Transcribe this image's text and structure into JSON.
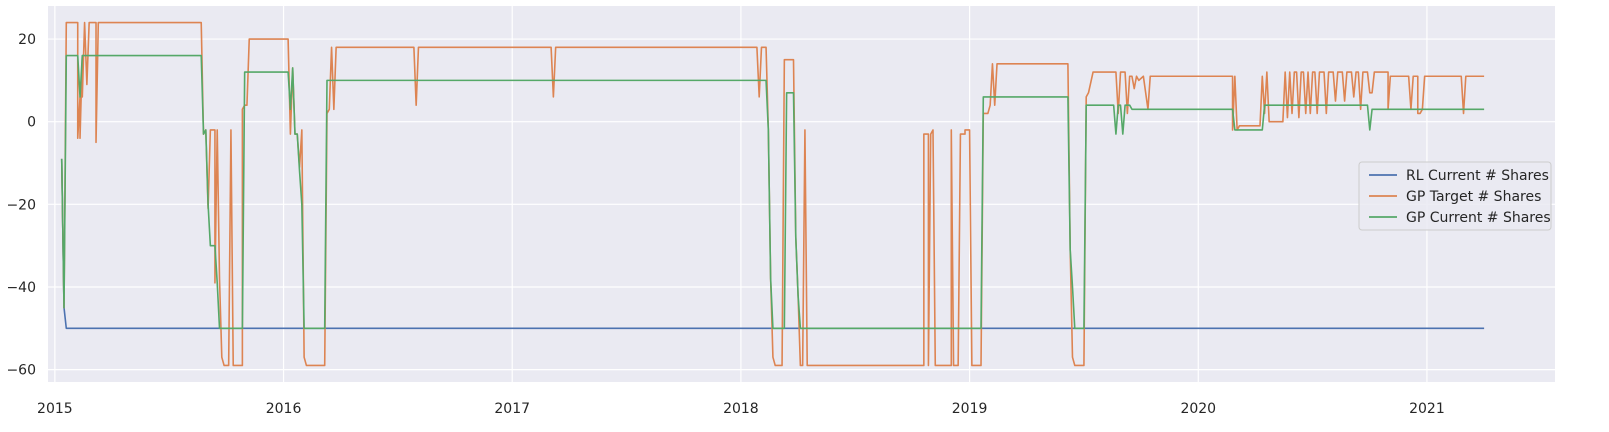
{
  "chart_data": {
    "type": "line",
    "title": "",
    "xlabel": "",
    "ylabel": "",
    "xlim": [
      2014.97,
      2021.56
    ],
    "ylim": [
      -63,
      28
    ],
    "x_ticks": [
      {
        "value": 2015,
        "label": "2015"
      },
      {
        "value": 2016,
        "label": "2016"
      },
      {
        "value": 2017,
        "label": "2017"
      },
      {
        "value": 2018,
        "label": "2018"
      },
      {
        "value": 2019,
        "label": "2019"
      },
      {
        "value": 2020,
        "label": "2020"
      },
      {
        "value": 2021,
        "label": "2021"
      }
    ],
    "y_ticks": [
      {
        "value": 20,
        "label": "20"
      },
      {
        "value": 0,
        "label": "0"
      },
      {
        "value": -20,
        "label": "−20"
      },
      {
        "value": -40,
        "label": "−40"
      },
      {
        "value": -60,
        "label": "−60"
      }
    ],
    "grid": true,
    "background": "#eaeaf2",
    "legend_position": "center-right",
    "series": [
      {
        "name": "RL Current # Shares",
        "color": "#4c72b0",
        "points": [
          [
            2015.03,
            -9
          ],
          [
            2015.04,
            -45
          ],
          [
            2015.05,
            -50
          ],
          [
            2021.25,
            -50
          ]
        ]
      },
      {
        "name": "GP Target # Shares",
        "color": "#dd8452",
        "points": [
          [
            2015.03,
            -9
          ],
          [
            2015.04,
            -45
          ],
          [
            2015.05,
            24
          ],
          [
            2015.1,
            24
          ],
          [
            2015.1,
            -4
          ],
          [
            2015.11,
            6
          ],
          [
            2015.11,
            -4
          ],
          [
            2015.12,
            16
          ],
          [
            2015.12,
            6
          ],
          [
            2015.13,
            24
          ],
          [
            2015.14,
            9
          ],
          [
            2015.15,
            24
          ],
          [
            2015.18,
            24
          ],
          [
            2015.18,
            -5
          ],
          [
            2015.19,
            24
          ],
          [
            2015.64,
            24
          ],
          [
            2015.65,
            -3
          ],
          [
            2015.66,
            -2
          ],
          [
            2015.67,
            -21
          ],
          [
            2015.68,
            -2
          ],
          [
            2015.7,
            -2
          ],
          [
            2015.7,
            -39
          ],
          [
            2015.71,
            -2
          ],
          [
            2015.72,
            -38
          ],
          [
            2015.73,
            -57
          ],
          [
            2015.74,
            -59
          ],
          [
            2015.76,
            -59
          ],
          [
            2015.77,
            -2
          ],
          [
            2015.78,
            -59
          ],
          [
            2015.82,
            -59
          ],
          [
            2015.82,
            3
          ],
          [
            2015.83,
            4
          ],
          [
            2015.84,
            4
          ],
          [
            2015.85,
            20
          ],
          [
            2016.02,
            20
          ],
          [
            2016.03,
            -3
          ],
          [
            2016.04,
            13
          ],
          [
            2016.05,
            -3
          ],
          [
            2016.06,
            -3
          ],
          [
            2016.07,
            -11
          ],
          [
            2016.08,
            -2
          ],
          [
            2016.09,
            -57
          ],
          [
            2016.1,
            -59
          ],
          [
            2016.18,
            -59
          ],
          [
            2016.19,
            2
          ],
          [
            2016.2,
            3
          ],
          [
            2016.21,
            18
          ],
          [
            2016.22,
            3
          ],
          [
            2016.23,
            18
          ],
          [
            2016.57,
            18
          ],
          [
            2016.58,
            4
          ],
          [
            2016.59,
            18
          ],
          [
            2017.17,
            18
          ],
          [
            2017.18,
            6
          ],
          [
            2017.19,
            18
          ],
          [
            2018.07,
            18
          ],
          [
            2018.08,
            6
          ],
          [
            2018.09,
            18
          ],
          [
            2018.11,
            18
          ],
          [
            2018.12,
            -2
          ],
          [
            2018.13,
            -38
          ],
          [
            2018.14,
            -57
          ],
          [
            2018.15,
            -59
          ],
          [
            2018.18,
            -59
          ],
          [
            2018.19,
            15
          ],
          [
            2018.23,
            15
          ],
          [
            2018.24,
            -28
          ],
          [
            2018.25,
            -42
          ],
          [
            2018.26,
            -59
          ],
          [
            2018.27,
            -59
          ],
          [
            2018.28,
            -2
          ],
          [
            2018.29,
            -59
          ],
          [
            2018.8,
            -59
          ],
          [
            2018.8,
            -3
          ],
          [
            2018.82,
            -3
          ],
          [
            2018.82,
            -59
          ],
          [
            2018.83,
            -3
          ],
          [
            2018.84,
            -2
          ],
          [
            2018.85,
            -59
          ],
          [
            2018.92,
            -59
          ],
          [
            2018.92,
            -2
          ],
          [
            2018.93,
            -59
          ],
          [
            2018.95,
            -59
          ],
          [
            2018.96,
            -3
          ],
          [
            2018.98,
            -3
          ],
          [
            2018.98,
            -2
          ],
          [
            2019.0,
            -2
          ],
          [
            2019.01,
            -59
          ],
          [
            2019.05,
            -59
          ],
          [
            2019.06,
            2
          ],
          [
            2019.07,
            2
          ],
          [
            2019.08,
            2
          ],
          [
            2019.09,
            4
          ],
          [
            2019.1,
            14
          ],
          [
            2019.11,
            4
          ],
          [
            2019.12,
            14
          ],
          [
            2019.43,
            14
          ],
          [
            2019.44,
            -31
          ],
          [
            2019.45,
            -57
          ],
          [
            2019.46,
            -59
          ],
          [
            2019.5,
            -59
          ],
          [
            2019.51,
            6
          ],
          [
            2019.52,
            7
          ],
          [
            2019.54,
            12
          ],
          [
            2019.64,
            12
          ],
          [
            2019.65,
            2
          ],
          [
            2019.66,
            12
          ],
          [
            2019.68,
            12
          ],
          [
            2019.69,
            2
          ],
          [
            2019.7,
            11
          ],
          [
            2019.71,
            11
          ],
          [
            2019.72,
            8
          ],
          [
            2019.73,
            11
          ],
          [
            2019.74,
            10
          ],
          [
            2019.76,
            11
          ],
          [
            2019.78,
            3
          ],
          [
            2019.79,
            11
          ],
          [
            2020.15,
            11
          ],
          [
            2020.15,
            -2
          ],
          [
            2020.16,
            11
          ],
          [
            2020.17,
            -2
          ],
          [
            2020.18,
            -1
          ],
          [
            2020.27,
            -1
          ],
          [
            2020.28,
            11
          ],
          [
            2020.29,
            2
          ],
          [
            2020.3,
            12
          ],
          [
            2020.31,
            0
          ],
          [
            2020.37,
            0
          ],
          [
            2020.38,
            12
          ],
          [
            2020.39,
            1
          ],
          [
            2020.4,
            12
          ],
          [
            2020.41,
            2
          ],
          [
            2020.42,
            12
          ],
          [
            2020.43,
            12
          ],
          [
            2020.44,
            1
          ],
          [
            2020.45,
            12
          ],
          [
            2020.46,
            12
          ],
          [
            2020.47,
            2
          ],
          [
            2020.48,
            12
          ],
          [
            2020.49,
            2
          ],
          [
            2020.5,
            12
          ],
          [
            2020.51,
            12
          ],
          [
            2020.52,
            2
          ],
          [
            2020.53,
            12
          ],
          [
            2020.55,
            12
          ],
          [
            2020.56,
            2
          ],
          [
            2020.57,
            12
          ],
          [
            2020.59,
            12
          ],
          [
            2020.6,
            5
          ],
          [
            2020.61,
            12
          ],
          [
            2020.63,
            12
          ],
          [
            2020.64,
            5
          ],
          [
            2020.65,
            12
          ],
          [
            2020.67,
            12
          ],
          [
            2020.68,
            6
          ],
          [
            2020.69,
            12
          ],
          [
            2020.7,
            12
          ],
          [
            2020.71,
            3
          ],
          [
            2020.72,
            12
          ],
          [
            2020.74,
            12
          ],
          [
            2020.75,
            7
          ],
          [
            2020.76,
            7
          ],
          [
            2020.77,
            12
          ],
          [
            2020.83,
            12
          ],
          [
            2020.83,
            3
          ],
          [
            2020.84,
            11
          ],
          [
            2020.92,
            11
          ],
          [
            2020.93,
            3
          ],
          [
            2020.94,
            11
          ],
          [
            2020.96,
            11
          ],
          [
            2020.96,
            2
          ],
          [
            2020.97,
            2
          ],
          [
            2020.98,
            3
          ],
          [
            2020.99,
            11
          ],
          [
            2021.15,
            11
          ],
          [
            2021.16,
            2
          ],
          [
            2021.17,
            11
          ],
          [
            2021.25,
            11
          ]
        ]
      },
      {
        "name": "GP Current # Shares",
        "color": "#55a868",
        "points": [
          [
            2015.03,
            -9
          ],
          [
            2015.04,
            -45
          ],
          [
            2015.05,
            16
          ],
          [
            2015.1,
            16
          ],
          [
            2015.11,
            6
          ],
          [
            2015.12,
            16
          ],
          [
            2015.64,
            16
          ],
          [
            2015.65,
            -3
          ],
          [
            2015.66,
            -2
          ],
          [
            2015.67,
            -20
          ],
          [
            2015.68,
            -30
          ],
          [
            2015.7,
            -30
          ],
          [
            2015.71,
            -39
          ],
          [
            2015.72,
            -50
          ],
          [
            2015.82,
            -50
          ],
          [
            2015.83,
            12
          ],
          [
            2016.02,
            12
          ],
          [
            2016.03,
            3
          ],
          [
            2016.04,
            13
          ],
          [
            2016.05,
            -3
          ],
          [
            2016.06,
            -3
          ],
          [
            2016.07,
            -12
          ],
          [
            2016.08,
            -20
          ],
          [
            2016.09,
            -50
          ],
          [
            2016.18,
            -50
          ],
          [
            2016.19,
            10
          ],
          [
            2018.11,
            10
          ],
          [
            2018.12,
            -2
          ],
          [
            2018.13,
            -38
          ],
          [
            2018.14,
            -50
          ],
          [
            2018.19,
            -50
          ],
          [
            2018.2,
            7
          ],
          [
            2018.23,
            7
          ],
          [
            2018.24,
            -28
          ],
          [
            2018.25,
            -42
          ],
          [
            2018.26,
            -50
          ],
          [
            2019.05,
            -50
          ],
          [
            2019.06,
            6
          ],
          [
            2019.43,
            6
          ],
          [
            2019.44,
            -31
          ],
          [
            2019.45,
            -40
          ],
          [
            2019.46,
            -50
          ],
          [
            2019.5,
            -50
          ],
          [
            2019.51,
            4
          ],
          [
            2019.63,
            4
          ],
          [
            2019.64,
            -3
          ],
          [
            2019.65,
            4
          ],
          [
            2019.66,
            4
          ],
          [
            2019.67,
            -3
          ],
          [
            2019.68,
            4
          ],
          [
            2019.7,
            4
          ],
          [
            2019.71,
            3
          ],
          [
            2020.15,
            3
          ],
          [
            2020.16,
            -2
          ],
          [
            2020.28,
            -2
          ],
          [
            2020.29,
            4
          ],
          [
            2020.74,
            4
          ],
          [
            2020.75,
            -2
          ],
          [
            2020.76,
            3
          ],
          [
            2021.25,
            3
          ]
        ]
      }
    ]
  }
}
